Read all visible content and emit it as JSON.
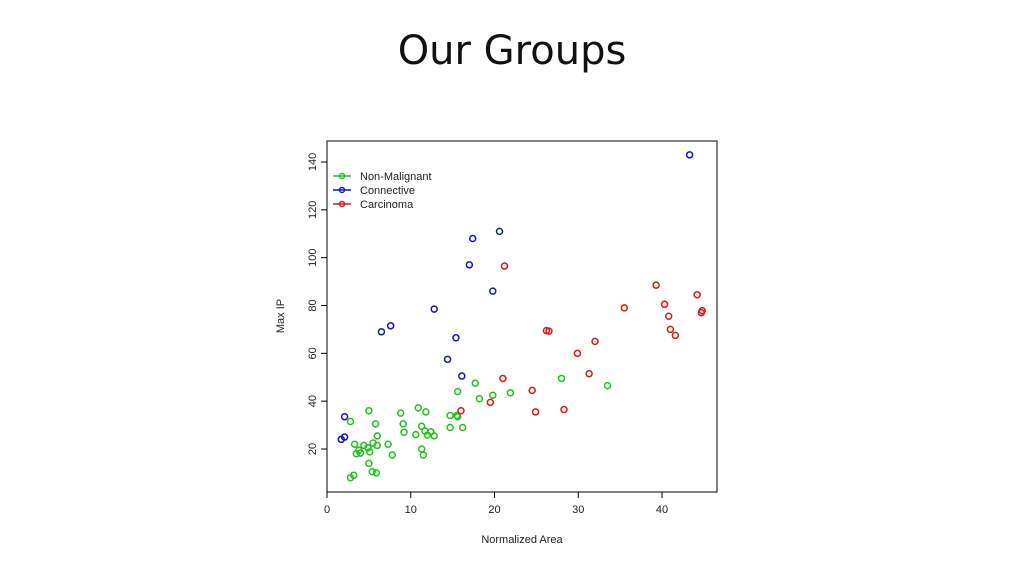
{
  "slide": {
    "title": "Our Groups"
  },
  "chart_data": {
    "type": "scatter",
    "xlabel": "Normalized Area",
    "ylabel": "Max IP",
    "xlim": [
      0,
      46
    ],
    "ylim": [
      3,
      148
    ],
    "xticks": [
      0,
      10,
      20,
      30,
      40
    ],
    "yticks": [
      20,
      40,
      60,
      80,
      100,
      120,
      140
    ],
    "grid": false,
    "legend_position": "top-left",
    "series": [
      {
        "name": "Non-Malignant",
        "color": "#22c21e",
        "points": [
          [
            2.8,
            8
          ],
          [
            3.2,
            9
          ],
          [
            5.4,
            10.5
          ],
          [
            5.9,
            10
          ],
          [
            5.0,
            14
          ],
          [
            3.5,
            18
          ],
          [
            4.0,
            18.3
          ],
          [
            5.1,
            18.8
          ],
          [
            7.8,
            17.5
          ],
          [
            3.8,
            19.5
          ],
          [
            4.9,
            20.5
          ],
          [
            6.0,
            21.5
          ],
          [
            4.4,
            21.5
          ],
          [
            3.3,
            22
          ],
          [
            5.5,
            22.5
          ],
          [
            7.3,
            22
          ],
          [
            6.0,
            25.5
          ],
          [
            2.8,
            31.5
          ],
          [
            5.8,
            30.5
          ],
          [
            9.2,
            27
          ],
          [
            9.1,
            30.5
          ],
          [
            10.6,
            26
          ],
          [
            11.3,
            29.5
          ],
          [
            11.7,
            27.5
          ],
          [
            12.0,
            25.8
          ],
          [
            12.4,
            27.2
          ],
          [
            12.8,
            25.5
          ],
          [
            11.3,
            20
          ],
          [
            11.5,
            17.5
          ],
          [
            10.9,
            37.2
          ],
          [
            11.8,
            35.5
          ],
          [
            8.8,
            35
          ],
          [
            5.0,
            36
          ],
          [
            14.7,
            29
          ],
          [
            14.7,
            34
          ],
          [
            15.5,
            34
          ],
          [
            15.6,
            33.5
          ],
          [
            16.2,
            29
          ],
          [
            15.6,
            44
          ],
          [
            17.7,
            47.5
          ],
          [
            18.2,
            41
          ],
          [
            19.8,
            42.5
          ],
          [
            21.9,
            43.5
          ],
          [
            28.0,
            49.5
          ],
          [
            33.5,
            46.5
          ]
        ]
      },
      {
        "name": "Connective",
        "color": "#1515c8",
        "points": [
          [
            1.7,
            24
          ],
          [
            2.1,
            25
          ],
          [
            2.1,
            33.5
          ],
          [
            6.5,
            69
          ],
          [
            7.6,
            71.5
          ],
          [
            12.8,
            78.5
          ],
          [
            14.4,
            57.5
          ],
          [
            15.4,
            66.5
          ],
          [
            16.1,
            50.5
          ],
          [
            17.0,
            97
          ],
          [
            17.4,
            108
          ],
          [
            19.8,
            86
          ],
          [
            20.6,
            111
          ],
          [
            43.3,
            143
          ]
        ]
      },
      {
        "name": "Carcinoma",
        "color": "#e01515",
        "points": [
          [
            16.0,
            36
          ],
          [
            19.5,
            39.5
          ],
          [
            21.0,
            49.5
          ],
          [
            21.2,
            96.5
          ],
          [
            24.5,
            44.5
          ],
          [
            24.9,
            35.5
          ],
          [
            26.2,
            69.5
          ],
          [
            26.5,
            69.3
          ],
          [
            28.3,
            36.5
          ],
          [
            29.9,
            60
          ],
          [
            31.3,
            51.5
          ],
          [
            32.0,
            65
          ],
          [
            35.5,
            79
          ],
          [
            39.3,
            88.5
          ],
          [
            40.3,
            80.5
          ],
          [
            40.8,
            75.5
          ],
          [
            41.0,
            70
          ],
          [
            41.6,
            67.5
          ],
          [
            44.2,
            84.5
          ],
          [
            44.7,
            77
          ],
          [
            44.8,
            77.8
          ]
        ]
      }
    ]
  }
}
